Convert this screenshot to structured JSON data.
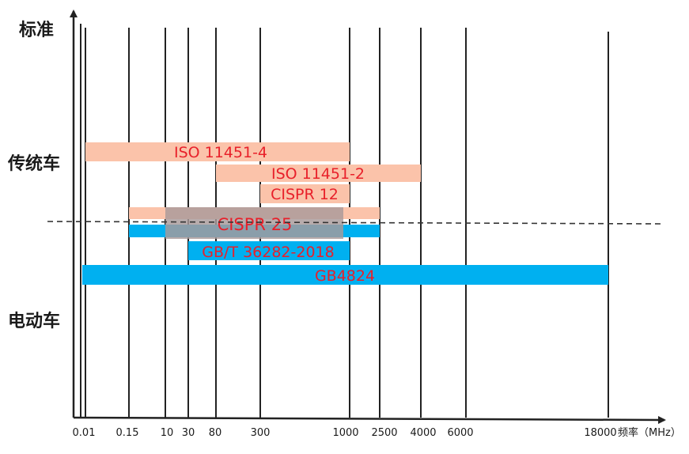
{
  "chart_data": {
    "type": "bar",
    "orientation": "horizontal-range",
    "ylabel": "标准",
    "xlabel": "频率（MHz）",
    "grid": true,
    "x_ticks": [
      "0.01",
      "0.15",
      "10",
      "30",
      "80",
      "300",
      "1000",
      "2500",
      "4000",
      "6000",
      "18000"
    ],
    "groups": [
      {
        "name": "传统车",
        "separator": "above"
      },
      {
        "name": "电动车",
        "separator": "below"
      }
    ],
    "colors": {
      "traditional": "#fbc3aa",
      "electric": "#00b0f0",
      "overlap": "#a89a9a",
      "label": "#e8202a"
    },
    "series": [
      {
        "name": "ISO 11451-4",
        "start": "0.01",
        "end": "1000",
        "group": "传统车"
      },
      {
        "name": "ISO 11451-2",
        "start": "80",
        "end": "4000",
        "group": "传统车"
      },
      {
        "name": "CISPR 12",
        "start": "300",
        "end": "1000",
        "group": "传统车"
      },
      {
        "name": "CISPR 25",
        "start": "0.15",
        "end": "2500",
        "group": "both",
        "overlap_start": "10",
        "overlap_end": "1000"
      },
      {
        "name": "GB/T 36282-2018",
        "start": "30",
        "end": "1000",
        "group": "电动车"
      },
      {
        "name": "GB4824",
        "start": "0.01",
        "end": "18000",
        "group": "电动车"
      }
    ]
  }
}
